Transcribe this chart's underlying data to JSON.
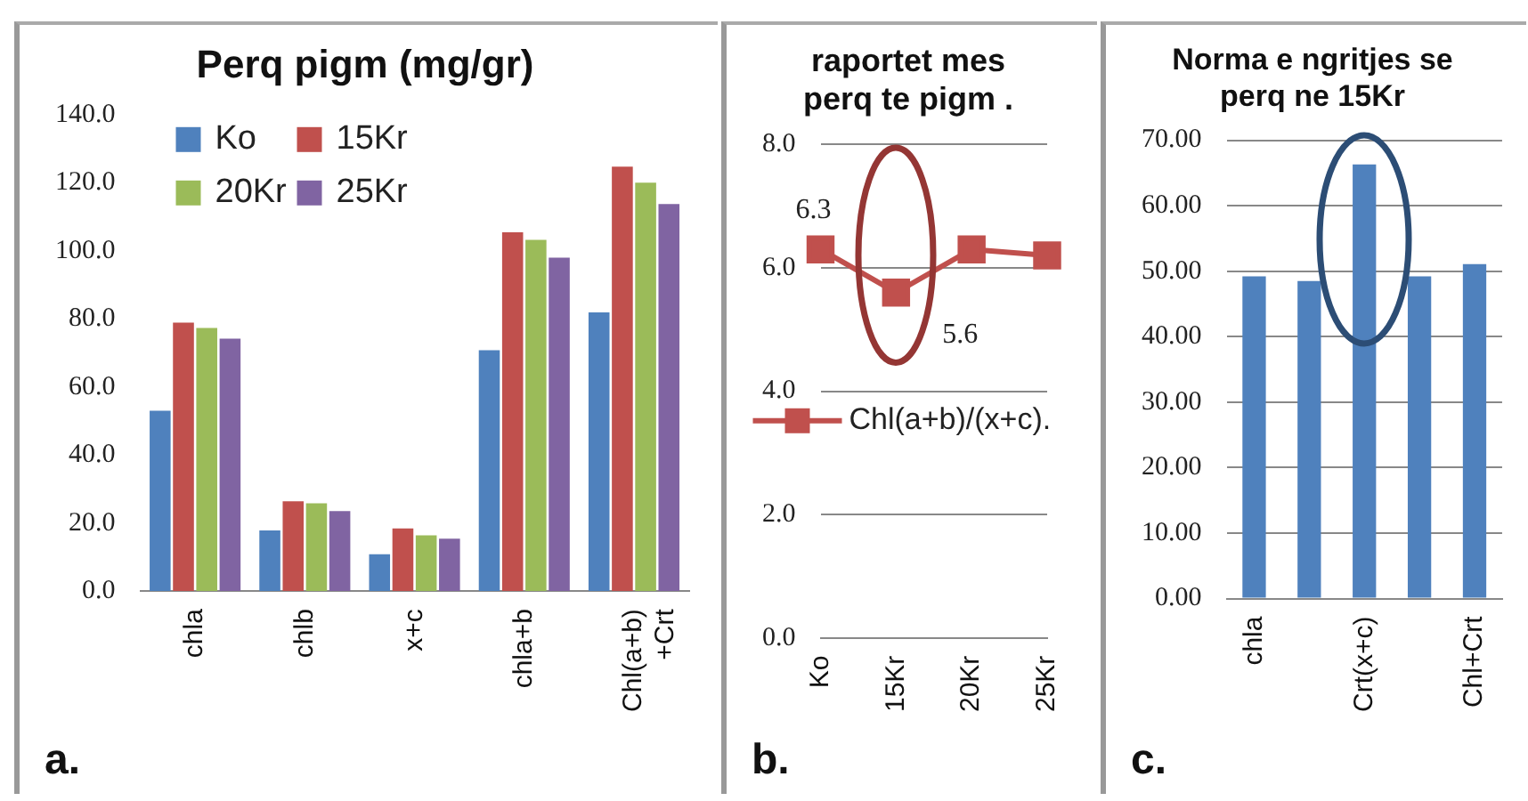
{
  "chart_data": [
    {
      "type": "bar",
      "title": "Perq pigm (mg/gr)",
      "categories": [
        "chla",
        "chlb",
        "x+c",
        "chla+b",
        "Chl(a+b)\n+Crt"
      ],
      "series": [
        {
          "name": "Ko",
          "color": "#4f81bd",
          "values": [
            53.0,
            17.8,
            10.8,
            70.8,
            81.9
          ]
        },
        {
          "name": "15Kr",
          "color": "#c0504d",
          "values": [
            78.9,
            26.4,
            18.4,
            105.4,
            124.7
          ]
        },
        {
          "name": "20Kr",
          "color": "#9bbb59",
          "values": [
            77.3,
            25.8,
            16.4,
            103.2,
            120.0
          ]
        },
        {
          "name": "25Kr",
          "color": "#8064a2",
          "values": [
            74.2,
            23.5,
            15.4,
            98.0,
            113.7
          ]
        }
      ],
      "ylim": [
        0,
        140
      ],
      "yticks": [
        {
          "value": 0,
          "label": "0.0"
        },
        {
          "value": 20,
          "label": "20.0"
        },
        {
          "value": 40,
          "label": "40.0"
        },
        {
          "value": 60,
          "label": "60.0"
        },
        {
          "value": 80,
          "label": "80.0"
        },
        {
          "value": 100,
          "label": "100.0"
        },
        {
          "value": 120,
          "label": "120.0"
        },
        {
          "value": 140,
          "label": "140.0"
        }
      ],
      "grid": false,
      "legend": "top",
      "annotations": [
        "a."
      ]
    },
    {
      "type": "line",
      "title": "raportet mes perq te pigm .",
      "categories": [
        "Ko",
        "15Kr",
        "20Kr",
        "25Kr"
      ],
      "series": [
        {
          "name": "Chl(a+b)/(x+c).",
          "color": "#c0504d",
          "values": [
            6.3,
            5.6,
            6.3,
            6.2
          ],
          "value_labels": [
            "6.3",
            "5.6",
            null,
            null
          ]
        }
      ],
      "ylim": [
        0,
        8
      ],
      "yticks": [
        {
          "value": 0,
          "label": "0.0"
        },
        {
          "value": 2,
          "label": "2.0"
        },
        {
          "value": 4,
          "label": "4.0"
        },
        {
          "value": 6,
          "label": "6.0"
        },
        {
          "value": 8,
          "label": "8.0"
        }
      ],
      "grid": "y",
      "legend": "left",
      "marker": "square",
      "annotations": [
        "b."
      ]
    },
    {
      "type": "bar",
      "title": "Norma e ngritjes se perq ne 15Kr",
      "categories": [
        "chla",
        null,
        "Crt(x+c)",
        null,
        "Chl+Crt"
      ],
      "values": [
        49.2,
        48.5,
        66.3,
        49.2,
        51.1
      ],
      "color": "#4f81bd",
      "ylim": [
        0,
        70
      ],
      "yticks": [
        {
          "value": 0,
          "label": "0.00"
        },
        {
          "value": 10,
          "label": "10.00"
        },
        {
          "value": 20,
          "label": "20.00"
        },
        {
          "value": 30,
          "label": "30.00"
        },
        {
          "value": 40,
          "label": "40.00"
        },
        {
          "value": 50,
          "label": "50.00"
        },
        {
          "value": 60,
          "label": "60.00"
        },
        {
          "value": 70,
          "label": "70.00"
        }
      ],
      "grid": "y",
      "annotations": [
        "c."
      ]
    }
  ]
}
